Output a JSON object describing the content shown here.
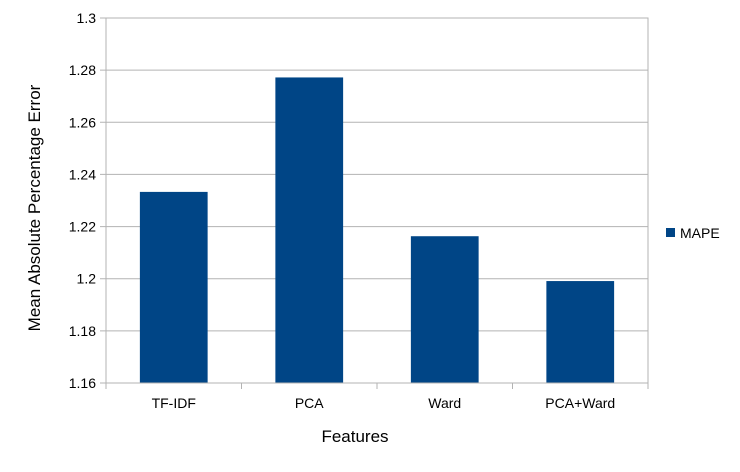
{
  "chart_data": {
    "type": "bar",
    "categories": [
      "TF-IDF",
      "PCA",
      "Ward",
      "PCA+Ward"
    ],
    "series": [
      {
        "name": "MAPE",
        "values": [
          1.2333,
          1.2772,
          1.2163,
          1.1991
        ],
        "color": "#004586"
      }
    ],
    "xlabel": "Features",
    "ylabel": "Mean Absolute Percentage Error",
    "ylim": [
      1.16,
      1.3
    ],
    "yticks": [
      "1.16",
      "1.18",
      "1.2",
      "1.22",
      "1.24",
      "1.26",
      "1.28",
      "1.3"
    ],
    "grid": true,
    "legend_position": "right"
  }
}
